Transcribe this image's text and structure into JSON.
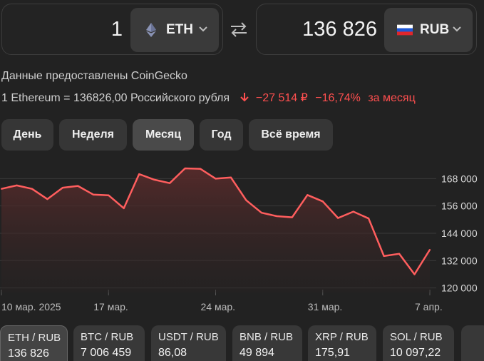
{
  "converter": {
    "from": {
      "amount": "1",
      "currency": "ETH",
      "icon": "ethereum-icon"
    },
    "to": {
      "amount": "136 826",
      "currency": "RUB",
      "icon": "russia-flag-icon"
    },
    "swap_icon": "swap-arrows-icon"
  },
  "info": {
    "provided_by": "Данные предоставлены CoinGecko",
    "rate": "1 Ethereum = 136826,00 Российского рубля",
    "change_abs": "−27 514 ₽",
    "change_pct": "−16,74%",
    "change_period": "за месяц",
    "negative_color": "#ff4f4f"
  },
  "periods": [
    {
      "label": "День",
      "active": false
    },
    {
      "label": "Неделя",
      "active": false
    },
    {
      "label": "Месяц",
      "active": true
    },
    {
      "label": "Год",
      "active": false
    },
    {
      "label": "Всё время",
      "active": false
    }
  ],
  "chart_data": {
    "type": "area",
    "line_color": "#ff5e5e",
    "grid": true,
    "y_ticks": [
      "168 000",
      "156 000",
      "144 000",
      "132 000",
      "120 000"
    ],
    "y_tick_values": [
      168000,
      156000,
      144000,
      132000,
      120000
    ],
    "x_ticks": [
      "10 мар. 2025",
      "17 мар.",
      "24 мар.",
      "31 мар.",
      "7 апр."
    ],
    "x_tick_index": [
      0,
      7,
      14,
      21,
      28
    ],
    "ylim": [
      118000,
      175000
    ],
    "values": [
      163500,
      165000,
      163500,
      159000,
      164000,
      164800,
      161000,
      160700,
      155000,
      170000,
      167500,
      166000,
      172500,
      172300,
      168000,
      168500,
      158500,
      153000,
      151500,
      151000,
      160800,
      158000,
      150700,
      153500,
      150500,
      134000,
      135000,
      126000,
      136800
    ]
  },
  "tickers": [
    {
      "pair": "ETH / RUB",
      "price": "136 826",
      "active": true
    },
    {
      "pair": "BTC / RUB",
      "price": "7 006 459",
      "active": false
    },
    {
      "pair": "USDT / RUB",
      "price": "86,08",
      "active": false
    },
    {
      "pair": "BNB / RUB",
      "price": "49 894",
      "active": false
    },
    {
      "pair": "XRP / RUB",
      "price": "175,91",
      "active": false
    },
    {
      "pair": "SOL / RUB",
      "price": "10 097,22",
      "active": false
    }
  ]
}
